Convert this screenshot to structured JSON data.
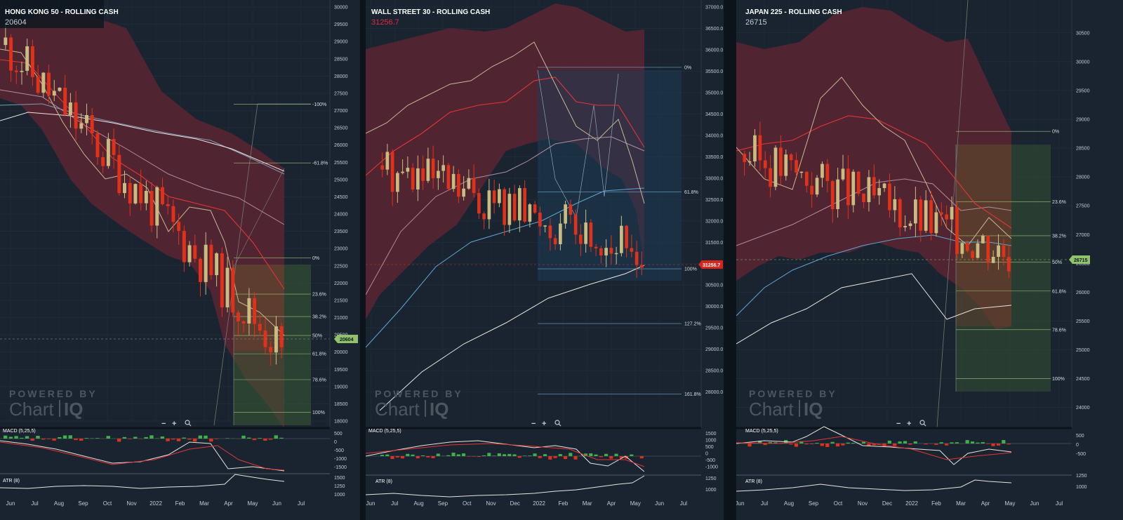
{
  "watermark": {
    "line1": "POWERED BY",
    "brand": "Chart",
    "brand2": "IQ"
  },
  "zoom": {
    "minus": "−",
    "plus": "+",
    "magnifier": "magnifier-icon"
  },
  "colors": {
    "up": "#c8bc82",
    "down": "#e2311b",
    "band": "#6b2b36",
    "bg": "#192430",
    "grid": "#25313d"
  },
  "chart_data": [
    {
      "type": "candlestick",
      "title": "HONG KONG 50 - ROLLING CASH",
      "last_price": "20604",
      "price_color": "#c4ccd4",
      "price_axis": [
        "30000",
        "29500",
        "29000",
        "28500",
        "28000",
        "27500",
        "27000",
        "26500",
        "26000",
        "25500",
        "25000",
        "24500",
        "24000",
        "23500",
        "23000",
        "22500",
        "22000",
        "21500",
        "21000",
        "20500",
        "20000",
        "19500",
        "19000",
        "18500",
        "18000"
      ],
      "ylim": [
        18000,
        30000
      ],
      "x_labels": [
        "Jun",
        "Jul",
        "Aug",
        "Sep",
        "Oct",
        "Nov",
        "2022",
        "Feb",
        "Mar",
        "Apr",
        "May",
        "Jun",
        "Jul"
      ],
      "fib_levels": [
        {
          "label": "-100%",
          "value": 27180
        },
        {
          "label": "-61.8%",
          "value": 25480
        },
        {
          "label": "0%",
          "value": 22730
        },
        {
          "label": "23.6%",
          "value": 21680
        },
        {
          "label": "38.2%",
          "value": 21030
        },
        {
          "label": "50%",
          "value": 20480
        },
        {
          "label": "61.8%",
          "value": 19950
        },
        {
          "label": "78.6%",
          "value": 19200
        },
        {
          "label": "100%",
          "value": 18250
        }
      ],
      "macd": {
        "label": "MACD (5,25,5)",
        "axis": [
          "500",
          "0",
          "-500",
          "-1000",
          "-1500"
        ]
      },
      "atr": {
        "label": "ATR (8)",
        "axis": [
          "1500",
          "1250",
          "1000"
        ]
      }
    },
    {
      "type": "candlestick",
      "title": "WALL STREET 30 - ROLLING CASH",
      "last_price": "31256.7",
      "price_color": "#e8293a",
      "price_axis": [
        "37000.0",
        "36500.0",
        "36000.0",
        "35500.0",
        "35000.0",
        "34500.0",
        "34000.0",
        "33500.0",
        "33000.0",
        "32500.0",
        "32000.0",
        "31500.0",
        "31000.0",
        "30500.0",
        "30000.0",
        "29500.0",
        "29000.0",
        "28500.0",
        "28000.0"
      ],
      "ylim": [
        27600,
        37000
      ],
      "x_labels": [
        "Jun",
        "Jul",
        "Aug",
        "Sep",
        "Oct",
        "Nov",
        "Dec",
        "2022",
        "Feb",
        "Mar",
        "Apr",
        "May",
        "Jun",
        "Jul"
      ],
      "fib_levels": [
        {
          "label": "0%",
          "value": 35590
        },
        {
          "label": "61.8%",
          "value": 32680
        },
        {
          "label": "100%",
          "value": 30880
        },
        {
          "label": "127.2%",
          "value": 29600
        },
        {
          "label": "161.8%",
          "value": 27950
        }
      ],
      "macd": {
        "label": "MACD (5,25,5)",
        "axis": [
          "1500",
          "1000",
          "500",
          "0",
          "-500",
          "-1000"
        ]
      },
      "atr": {
        "label": "ATR (8)",
        "axis": [
          "1250",
          "1000"
        ]
      }
    },
    {
      "type": "candlestick",
      "title": "JAPAN 225 - ROLLING CASH",
      "last_price": "26715",
      "price_color": "#c4ccd4",
      "price_axis": [
        "30500",
        "30000",
        "29500",
        "29000",
        "28500",
        "28000",
        "27500",
        "27000",
        "26500",
        "26000",
        "25500",
        "25000",
        "24500",
        "24000"
      ],
      "ylim": [
        23850,
        30850
      ],
      "x_labels": [
        "Jun",
        "Jul",
        "Aug",
        "Sep",
        "Oct",
        "Nov",
        "Dec",
        "2022",
        "Feb",
        "Mar",
        "Apr",
        "May",
        "Jun",
        "Jul"
      ],
      "fib_levels": [
        {
          "label": "0%",
          "value": 28790
        },
        {
          "label": "23.6%",
          "value": 27570
        },
        {
          "label": "38.2%",
          "value": 26980
        },
        {
          "label": "50%",
          "value": 26520
        },
        {
          "label": "61.8%",
          "value": 26020
        },
        {
          "label": "78.6%",
          "value": 25350
        },
        {
          "label": "100%",
          "value": 24500
        }
      ],
      "macd": {
        "label": "MACD (5,25,5)",
        "axis": [
          "500",
          "0",
          "-500"
        ]
      },
      "atr": {
        "label": "ATR (8)",
        "axis": [
          "1250",
          "1000"
        ]
      }
    }
  ]
}
